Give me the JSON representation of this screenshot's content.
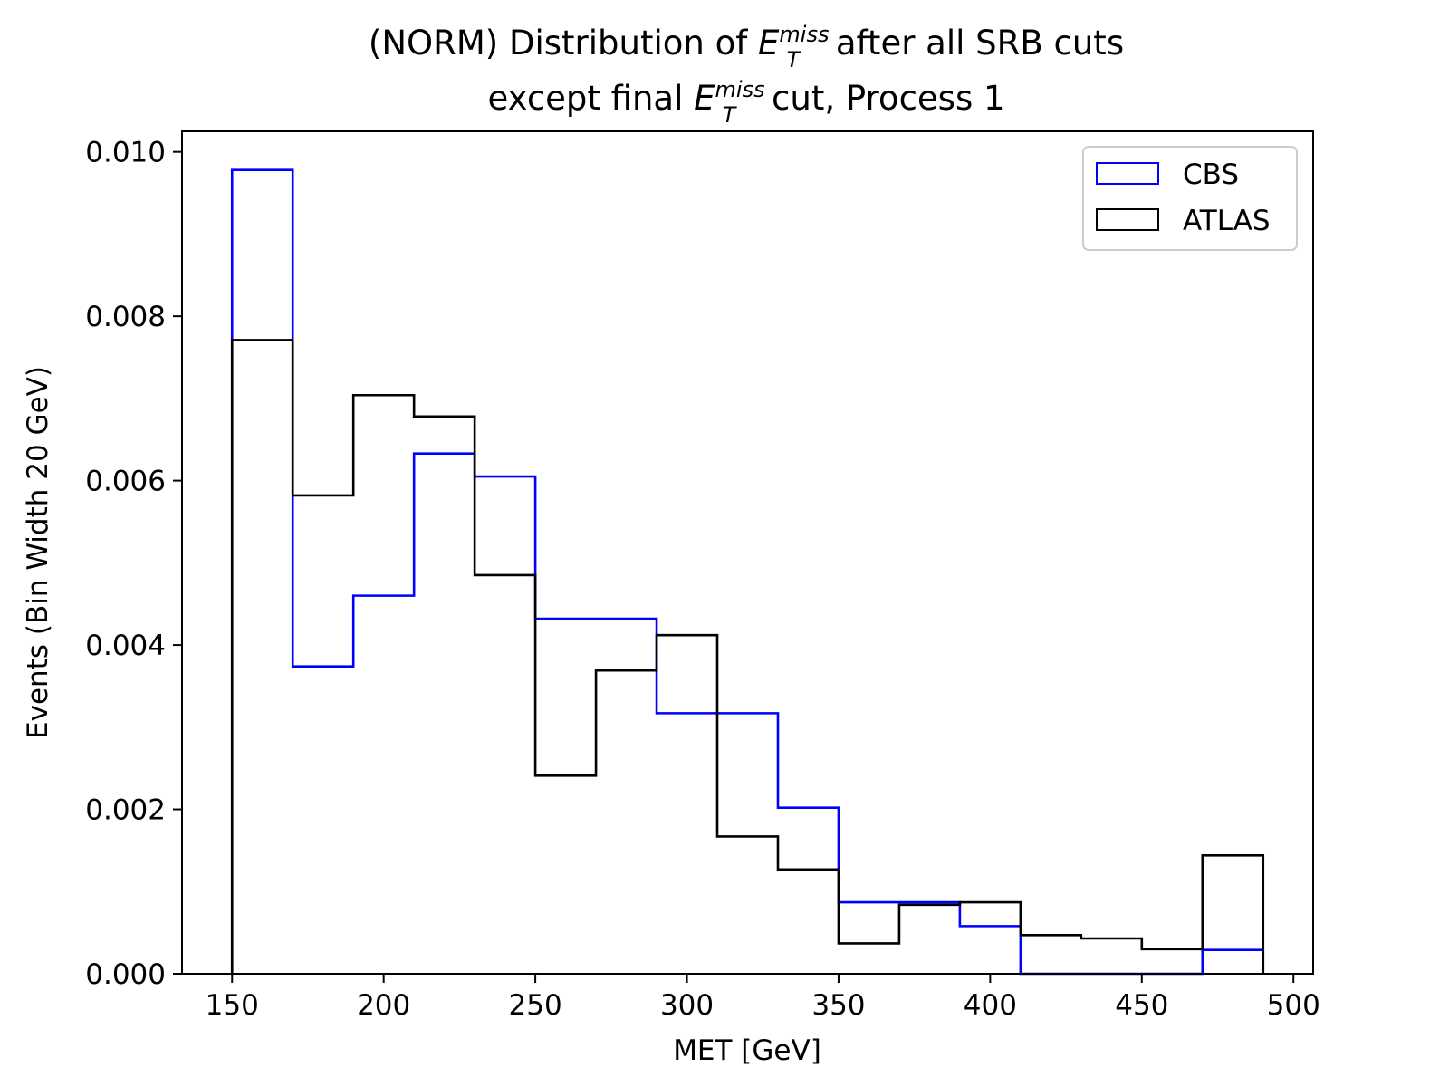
{
  "chart_data": {
    "type": "histogram-step",
    "title_line1": {
      "before": "(NORM) Distribution of ",
      "var_base": "E",
      "var_sup": "miss",
      "var_sub": "T",
      "after": " after all SRB cuts"
    },
    "title_line2": {
      "before": "except final ",
      "var_base": "E",
      "var_sup": "miss",
      "var_sub": "T",
      "after": " cut, Process 1"
    },
    "xlabel": "MET [GeV]",
    "ylabel": "Events (Bin Width 20 GeV)",
    "xlim": [
      133.5,
      506.5
    ],
    "ylim": [
      0,
      0.01025
    ],
    "xticks": [
      150,
      200,
      250,
      300,
      350,
      400,
      450,
      500
    ],
    "yticks": [
      0.0,
      0.002,
      0.004,
      0.006,
      0.008,
      0.01
    ],
    "ytick_labels": [
      "0.000",
      "0.002",
      "0.004",
      "0.006",
      "0.008",
      "0.010"
    ],
    "grid": false,
    "legend_position": "top-right",
    "bin_edges": [
      150,
      170,
      190,
      210,
      230,
      250,
      270,
      290,
      310,
      330,
      350,
      370,
      390,
      410,
      430,
      450,
      470,
      490
    ],
    "series": [
      {
        "name": "CBS",
        "color": "#0000ff",
        "values": [
          0.00978,
          0.00374,
          0.0046,
          0.00633,
          0.00605,
          0.00432,
          0.00432,
          0.00317,
          0.00317,
          0.00202,
          0.00087,
          0.00087,
          0.00058,
          0.0,
          0.0,
          0.0,
          0.00029
        ]
      },
      {
        "name": "ATLAS",
        "color": "#000000",
        "values": [
          0.00771,
          0.00582,
          0.00704,
          0.00678,
          0.00485,
          0.00241,
          0.00369,
          0.00412,
          0.00167,
          0.00127,
          0.00037,
          0.00084,
          0.00087,
          0.00047,
          0.00043,
          0.0003,
          0.00144
        ]
      }
    ]
  }
}
